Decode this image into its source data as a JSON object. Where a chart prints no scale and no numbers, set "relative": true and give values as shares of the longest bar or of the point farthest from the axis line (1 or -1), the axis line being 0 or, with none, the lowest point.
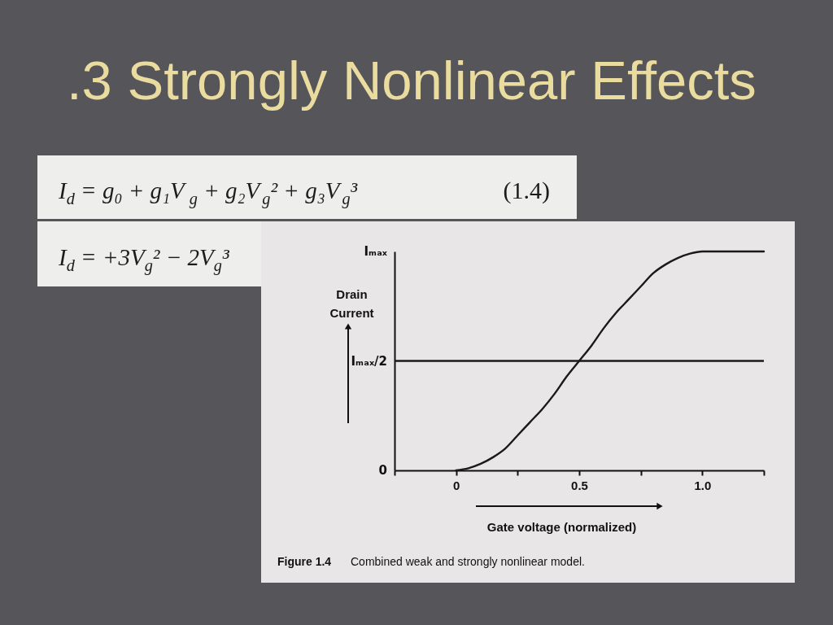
{
  "chart_data": {
    "type": "line",
    "title": ".3 Strongly Nonlinear Effects",
    "xlabel": "Gate voltage (normalized)",
    "ylabel": "Drain Current",
    "relative": true,
    "annotations": [
      "I$_{d}$ = g₀ + g₁V$_{g}$ + g₂V$_{g}$² + g₃V$_{g}$³",
      "(1.4)",
      "I$_{d}$ = +3V$_{g}$² − 2V$_{g}$³",
      "Figure 1.4",
      "Combined weak and strongly nonlinear model.",
      "Iₘₐₓ",
      "0"
    ],
    "x": [
      0,
      0.05,
      0.1,
      0.15,
      0.2,
      0.25,
      0.3,
      0.35,
      0.4,
      0.45,
      0.5,
      0.55,
      0.6,
      0.65,
      0.7,
      0.75,
      0.8,
      0.85,
      0.9,
      0.95,
      1,
      1.25
    ],
    "series": [
      {
        "color": "#1a1a1a",
        "values": [
          0,
          0.01,
          0.03,
          0.06,
          0.1,
          0.16,
          0.22,
          0.28,
          0.35,
          0.43,
          0.5,
          0.57,
          0.65,
          0.72,
          0.78,
          0.84,
          0.9,
          0.94,
          0.97,
          0.99,
          1,
          1
        ]
      }
    ],
    "xlim": [
      -0.25,
      1.25
    ],
    "xticks": [
      {
        "value": -0.25,
        "label": null
      },
      0,
      {
        "value": 0.25,
        "label": null
      },
      0.5,
      {
        "value": 0.75,
        "label": null
      },
      {
        "value": 1,
        "label": "1.0"
      },
      {
        "value": 1.25,
        "label": null
      }
    ],
    "ref_lines": [
      {
        "axis": "y",
        "value": 0.5,
        "label": "Iₘₐₓ/2",
        "color": "#1a1a1a"
      }
    ],
    "line_style": "solid"
  }
}
